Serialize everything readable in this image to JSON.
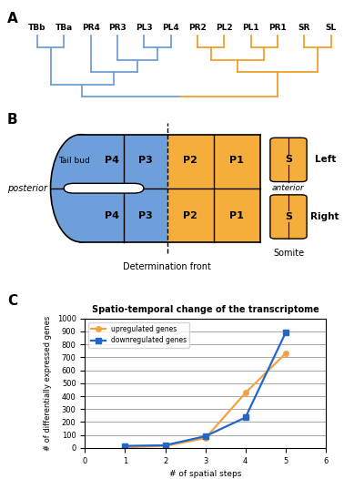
{
  "panel_labels": [
    "A",
    "B",
    "C"
  ],
  "dendrogram": {
    "tree": [
      [
        [
          "TBb",
          "TBa"
        ],
        [
          "PR4",
          [
            "PR3",
            [
              "PL3",
              "PL4"
            ]
          ]
        ]
      ],
      [
        [
          [
            "PR2",
            "PL2"
          ],
          [
            "PL1",
            "PR1"
          ]
        ],
        [
          "SR",
          "SL"
        ]
      ]
    ],
    "colors": [
      "#6f9fdb",
      "#f0a02e"
    ]
  },
  "diagram": {
    "cells": [
      "P4",
      "P3",
      "P2",
      "P1"
    ],
    "cell_colors": [
      "#6f9fdb",
      "#6f9fdb",
      "#f5ad3c",
      "#f5ad3c"
    ],
    "somite_label": "S",
    "somite_color": "#f5ad3c",
    "tail_bud": "Tail bud",
    "posterior": "posterior",
    "anterior": "anterior",
    "side_labels": [
      "Left",
      "Right"
    ],
    "somite": "Somite",
    "front": "Determination front"
  },
  "chart_data": {
    "type": "line",
    "title": "Spatio-temporal change of the transcriptome",
    "x_label": "# of spatial steps",
    "y_label": "# of differentially expressed genes",
    "x": [
      1,
      2,
      3,
      4,
      5
    ],
    "series": [
      {
        "name": "upregulated genes",
        "color": "#f4a142",
        "marker": "circle",
        "values": [
          5,
          15,
          75,
          425,
          730
        ]
      },
      {
        "name": "downregulated genes",
        "color": "#2266cc",
        "marker": "square",
        "values": [
          15,
          20,
          90,
          235,
          890
        ]
      }
    ],
    "xlim": [
      0,
      6
    ],
    "xticks": [
      0,
      1,
      2,
      3,
      4,
      5,
      6
    ],
    "ylim": [
      0,
      1000
    ],
    "yticks": [
      0,
      100,
      200,
      300,
      400,
      500,
      600,
      700,
      800,
      900,
      1000
    ],
    "grid": true,
    "legend": "upper left"
  }
}
